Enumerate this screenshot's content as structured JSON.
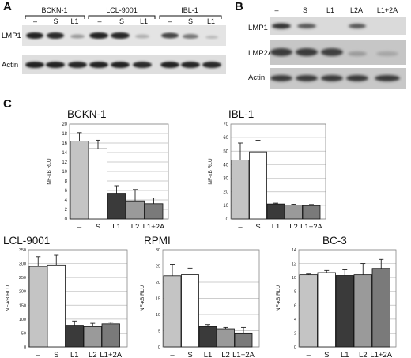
{
  "panels": {
    "a": "A",
    "b": "B",
    "c": "C"
  },
  "blot_a": {
    "cell_lines": [
      "BCKN-1",
      "LCL-9001",
      "IBL-1"
    ],
    "lanes": [
      "–",
      "S",
      "L1",
      "–",
      "S",
      "L1",
      "–",
      "S",
      "L1"
    ],
    "rows": [
      "LMP1",
      "Actin"
    ]
  },
  "blot_b": {
    "lanes": [
      "–",
      "S",
      "L1",
      "L2A",
      "L1+2A"
    ],
    "rows": [
      "LMP1",
      "LMP2A",
      "Actin"
    ]
  },
  "colors": {
    "neg": "#c4c4c4",
    "s": "#ffffff",
    "l1": "#3a3a3a",
    "l2": "#9a9a9a",
    "l1_2a": "#7a7a7a"
  },
  "chart_data": [
    {
      "type": "bar",
      "title": "BCKN-1",
      "ylabel": "NF-κB RLU",
      "categories": [
        "–",
        "S",
        "L1",
        "L2",
        "L1+2A"
      ],
      "values": [
        16.4,
        14.8,
        5.4,
        3.8,
        3.2
      ],
      "errors": [
        1.8,
        1.8,
        1.6,
        2.4,
        1.2
      ],
      "ylim": [
        0,
        20
      ],
      "yticks": [
        0,
        2,
        4,
        6,
        8,
        10,
        12,
        14,
        16,
        18,
        20
      ]
    },
    {
      "type": "bar",
      "title": "IBL-1",
      "ylabel": "NF-κB RLU",
      "categories": [
        "–",
        "S",
        "L1",
        "L2",
        "L1+2A"
      ],
      "values": [
        43.5,
        49.5,
        11.0,
        10.2,
        9.8
      ],
      "errors": [
        12.5,
        8.5,
        0.6,
        0.6,
        0.8
      ],
      "ylim": [
        0,
        70
      ],
      "yticks": [
        0,
        10,
        20,
        30,
        40,
        50,
        60,
        70
      ]
    },
    {
      "type": "bar",
      "title": "LCL-9001",
      "ylabel": "NF-κB RLU",
      "categories": [
        "–",
        "S",
        "L1",
        "L2",
        "L1+2A"
      ],
      "values": [
        290,
        295,
        78,
        73,
        83
      ],
      "errors": [
        35,
        35,
        15,
        12,
        6
      ],
      "ylim": [
        0,
        350
      ],
      "yticks": [
        0,
        50,
        100,
        150,
        200,
        250,
        300,
        350
      ]
    },
    {
      "type": "bar",
      "title": "RPMI",
      "ylabel": "NF-κB RLU",
      "categories": [
        "–",
        "S",
        "L1",
        "L2",
        "L1+2A"
      ],
      "values": [
        22.0,
        22.3,
        6.3,
        5.6,
        4.3
      ],
      "errors": [
        3.5,
        2.0,
        0.6,
        0.4,
        1.7
      ],
      "ylim": [
        0,
        30
      ],
      "yticks": [
        0,
        5,
        10,
        15,
        20,
        25,
        30
      ]
    },
    {
      "type": "bar",
      "title": "BC-3",
      "ylabel": "NF-κB RLU",
      "categories": [
        "–",
        "S",
        "L1",
        "L2",
        "L1+2A"
      ],
      "values": [
        10.4,
        10.7,
        10.3,
        10.4,
        11.3
      ],
      "errors": [
        0.1,
        0.3,
        0.8,
        1.6,
        1.3
      ],
      "ylim": [
        0,
        14
      ],
      "yticks": [
        0,
        2,
        4,
        6,
        8,
        10,
        12,
        14
      ]
    }
  ]
}
